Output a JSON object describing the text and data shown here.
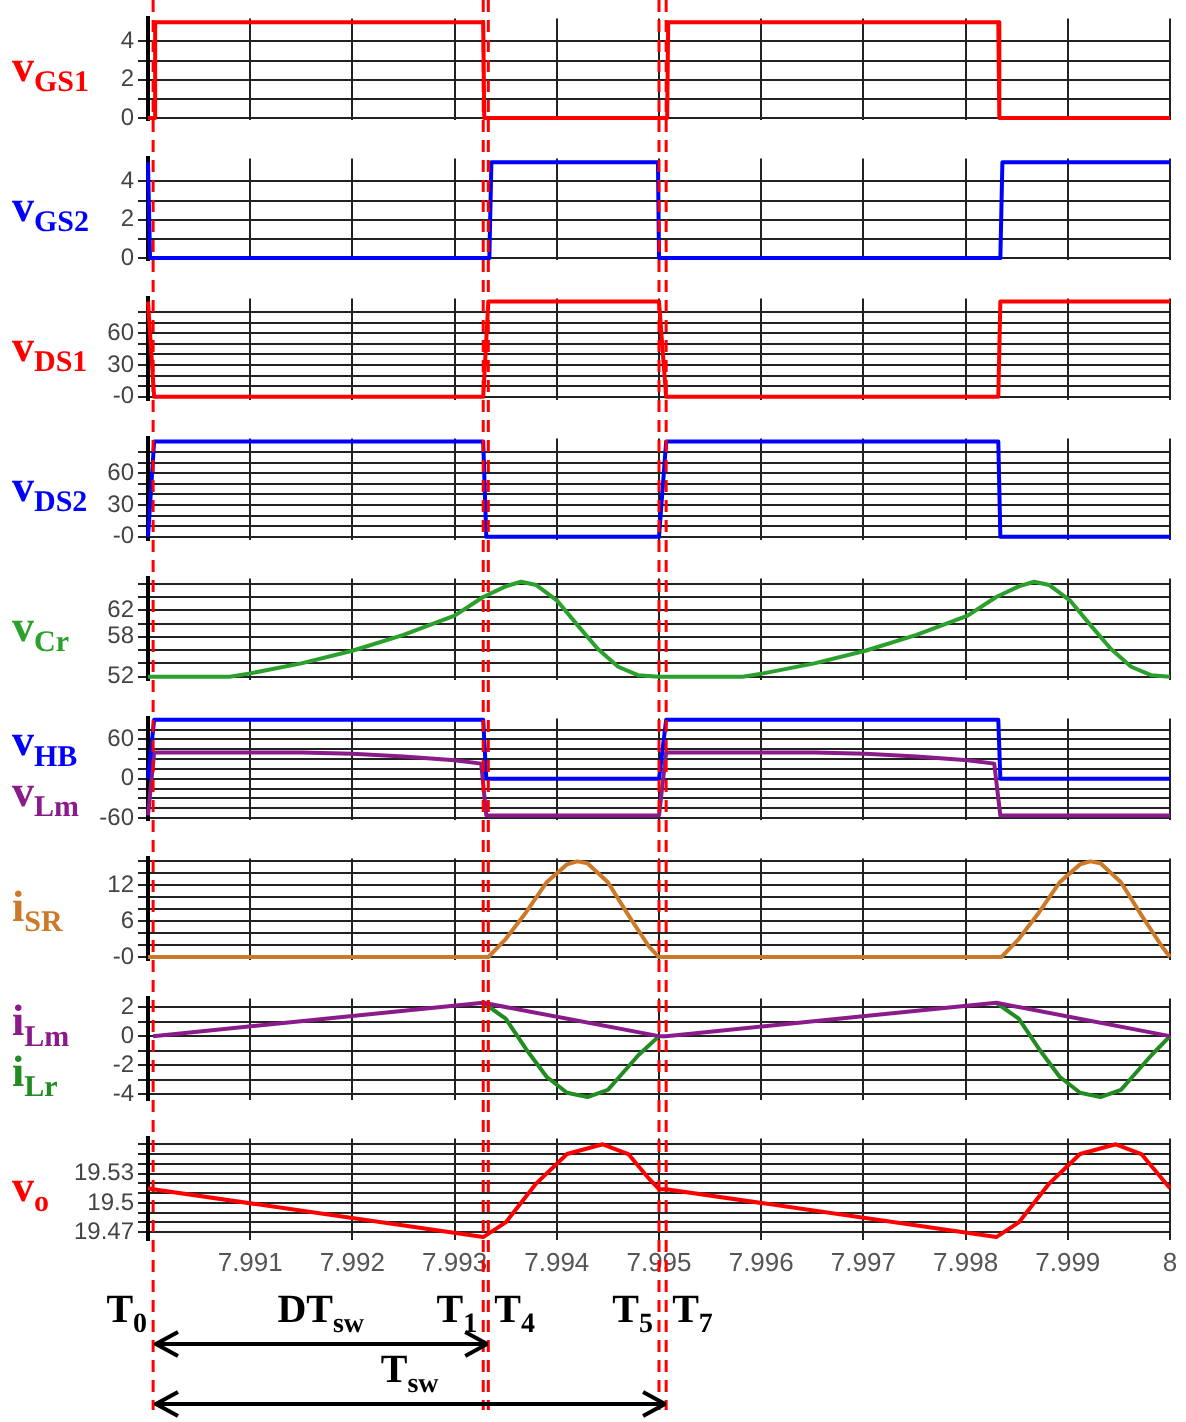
{
  "chart_data": [
    {
      "type": "line",
      "xlim": [
        7.99,
        8
      ],
      "xticks": [
        7.991,
        7.992,
        7.993,
        7.994,
        7.995,
        7.996,
        7.997,
        7.998,
        7.999,
        8
      ],
      "ylim": [
        -0.1,
        5.2
      ],
      "yticks": [
        0,
        {
          "value": 1,
          "label": null
        },
        2,
        {
          "value": 3,
          "label": null
        },
        4
      ],
      "grid": true,
      "legend": "left",
      "tick_labels": "y",
      "series": [
        {
          "name": "v$_{GS1}$",
          "color": "#ff0000",
          "x": [
            7.99,
            7.99006,
            7.99007,
            7.99328,
            7.99329,
            7.99508,
            7.99509,
            7.99832,
            7.99833,
            8
          ],
          "values": [
            0,
            0,
            5,
            5,
            0,
            0,
            5,
            5,
            0,
            0
          ]
        }
      ],
      "ref_lines": [
        {
          "axis": "x",
          "value": 7.99005,
          "color": "#ff0000",
          "line_style": "dashed"
        },
        {
          "axis": "x",
          "value": 7.99328,
          "color": "#ff0000",
          "line_style": "dashed"
        },
        {
          "axis": "x",
          "value": 7.99333,
          "color": "#ff0000",
          "line_style": "dashed"
        },
        {
          "axis": "x",
          "value": 7.995,
          "color": "#ff0000",
          "line_style": "dashed"
        },
        {
          "axis": "x",
          "value": 7.99507,
          "color": "#ff0000",
          "line_style": "dashed"
        }
      ]
    },
    {
      "type": "line",
      "xlim": [
        7.99,
        8
      ],
      "xticks": [
        7.991,
        7.992,
        7.993,
        7.994,
        7.995,
        7.996,
        7.997,
        7.998,
        7.999,
        8
      ],
      "ylim": [
        -0.1,
        5.2
      ],
      "yticks": [
        0,
        {
          "value": 1,
          "label": null
        },
        2,
        {
          "value": 3,
          "label": null
        },
        4
      ],
      "grid": true,
      "legend": "left",
      "tick_labels": "y",
      "series": [
        {
          "name": "v$_{GS2}$",
          "color": "#0000ff",
          "x": [
            7.99,
            7.99001,
            7.99002,
            7.99334,
            7.99336,
            7.99499,
            7.995,
            7.99834,
            7.99836,
            8
          ],
          "values": [
            5,
            5,
            0,
            0,
            5,
            5,
            0,
            0,
            5,
            5
          ]
        }
      ],
      "ref_lines": [
        {
          "axis": "x",
          "value": 7.99005,
          "color": "#ff0000",
          "line_style": "dashed"
        },
        {
          "axis": "x",
          "value": 7.99328,
          "color": "#ff0000",
          "line_style": "dashed"
        },
        {
          "axis": "x",
          "value": 7.99333,
          "color": "#ff0000",
          "line_style": "dashed"
        },
        {
          "axis": "x",
          "value": 7.995,
          "color": "#ff0000",
          "line_style": "dashed"
        },
        {
          "axis": "x",
          "value": 7.99507,
          "color": "#ff0000",
          "line_style": "dashed"
        }
      ]
    },
    {
      "type": "line",
      "xlim": [
        7.99,
        8
      ],
      "xticks": [
        7.991,
        7.992,
        7.993,
        7.994,
        7.995,
        7.996,
        7.997,
        7.998,
        7.999,
        8
      ],
      "ylim": [
        -3,
        93
      ],
      "yticks": [
        {
          "value": 0,
          "label": "-0"
        },
        {
          "value": 10,
          "label": null
        },
        {
          "value": 20,
          "label": null
        },
        30,
        {
          "value": 40,
          "label": null
        },
        {
          "value": 50,
          "label": null
        },
        60,
        {
          "value": 70,
          "label": null
        },
        {
          "value": 80,
          "label": null
        }
      ],
      "grid": true,
      "legend": "left",
      "tick_labels": "y",
      "series": [
        {
          "name": "v$_{DS1}$",
          "color": "#ff0000",
          "x": [
            7.99,
            7.99006,
            7.99328,
            7.99333,
            7.995,
            7.99507,
            7.99832,
            7.99834,
            8
          ],
          "values": [
            90,
            0,
            0,
            90,
            90,
            0,
            0,
            90,
            90
          ]
        }
      ],
      "ref_lines": [
        {
          "axis": "x",
          "value": 7.99005,
          "color": "#ff0000",
          "line_style": "dashed"
        },
        {
          "axis": "x",
          "value": 7.99328,
          "color": "#ff0000",
          "line_style": "dashed"
        },
        {
          "axis": "x",
          "value": 7.99333,
          "color": "#ff0000",
          "line_style": "dashed"
        },
        {
          "axis": "x",
          "value": 7.995,
          "color": "#ff0000",
          "line_style": "dashed"
        },
        {
          "axis": "x",
          "value": 7.99507,
          "color": "#ff0000",
          "line_style": "dashed"
        }
      ]
    },
    {
      "type": "line",
      "xlim": [
        7.99,
        8
      ],
      "xticks": [
        7.991,
        7.992,
        7.993,
        7.994,
        7.995,
        7.996,
        7.997,
        7.998,
        7.999,
        8
      ],
      "ylim": [
        -3,
        93
      ],
      "yticks": [
        {
          "value": 0,
          "label": "-0"
        },
        {
          "value": 10,
          "label": null
        },
        {
          "value": 20,
          "label": null
        },
        30,
        {
          "value": 40,
          "label": null
        },
        {
          "value": 50,
          "label": null
        },
        60,
        {
          "value": 70,
          "label": null
        },
        {
          "value": 80,
          "label": null
        }
      ],
      "grid": true,
      "legend": "left",
      "tick_labels": "y",
      "series": [
        {
          "name": "v$_{DS2}$",
          "color": "#0000ff",
          "x": [
            7.99,
            7.99006,
            7.99328,
            7.99331,
            7.995,
            7.99507,
            7.99832,
            7.99834,
            8
          ],
          "values": [
            0,
            90,
            90,
            0,
            0,
            90,
            90,
            0,
            0
          ]
        }
      ],
      "ref_lines": [
        {
          "axis": "x",
          "value": 7.99005,
          "color": "#ff0000",
          "line_style": "dashed"
        },
        {
          "axis": "x",
          "value": 7.99328,
          "color": "#ff0000",
          "line_style": "dashed"
        },
        {
          "axis": "x",
          "value": 7.99333,
          "color": "#ff0000",
          "line_style": "dashed"
        },
        {
          "axis": "x",
          "value": 7.995,
          "color": "#ff0000",
          "line_style": "dashed"
        },
        {
          "axis": "x",
          "value": 7.99507,
          "color": "#ff0000",
          "line_style": "dashed"
        }
      ]
    },
    {
      "type": "line",
      "xlim": [
        7.99,
        8
      ],
      "xticks": [
        7.991,
        7.992,
        7.993,
        7.994,
        7.995,
        7.996,
        7.997,
        7.998,
        7.999,
        8
      ],
      "ylim": [
        51.5,
        66.8
      ],
      "yticks": [
        52,
        {
          "value": 54,
          "label": null
        },
        {
          "value": 56,
          "label": null
        },
        58,
        {
          "value": 60,
          "label": null
        },
        62,
        {
          "value": 64,
          "label": null
        },
        {
          "value": 66,
          "label": null
        }
      ],
      "grid": true,
      "legend": "left",
      "tick_labels": "y",
      "series": [
        {
          "name": "v$_{Cr}$",
          "color": "#2ca02c",
          "x": [
            7.99,
            7.9908,
            7.991,
            7.9915,
            7.992,
            7.9925,
            7.993,
            7.99328,
            7.9935,
            7.99365,
            7.9938,
            7.994,
            7.9942,
            7.9944,
            7.9946,
            7.9948,
            7.995,
            7.99582,
            7.99602,
            7.99652,
            7.99702,
            7.99752,
            7.99802,
            7.9983,
            7.99852,
            7.99867,
            7.99882,
            7.99902,
            7.99922,
            7.99942,
            7.99962,
            7.99982,
            8
          ],
          "values": [
            52,
            52,
            52.5,
            54,
            55.9,
            58.3,
            61.2,
            64,
            65.6,
            66.3,
            65.8,
            63.5,
            59.8,
            56.2,
            53.5,
            52.2,
            52,
            52,
            52.5,
            54,
            55.9,
            58.3,
            61.2,
            64,
            65.6,
            66.3,
            65.8,
            63.5,
            59.8,
            56.2,
            53.5,
            52.2,
            52
          ]
        }
      ],
      "ref_lines": [
        {
          "axis": "x",
          "value": 7.99005,
          "color": "#ff0000",
          "line_style": "dashed"
        },
        {
          "axis": "x",
          "value": 7.99328,
          "color": "#ff0000",
          "line_style": "dashed"
        },
        {
          "axis": "x",
          "value": 7.99333,
          "color": "#ff0000",
          "line_style": "dashed"
        },
        {
          "axis": "x",
          "value": 7.995,
          "color": "#ff0000",
          "line_style": "dashed"
        },
        {
          "axis": "x",
          "value": 7.99507,
          "color": "#ff0000",
          "line_style": "dashed"
        }
      ]
    },
    {
      "type": "line",
      "xlim": [
        7.99,
        8
      ],
      "xticks": [
        7.991,
        7.992,
        7.993,
        7.994,
        7.995,
        7.996,
        7.997,
        7.998,
        7.999,
        8
      ],
      "ylim": [
        -63,
        92
      ],
      "yticks": [
        -60,
        {
          "value": -45,
          "label": null
        },
        {
          "value": -30,
          "label": null
        },
        {
          "value": -15,
          "label": null
        },
        0,
        {
          "value": 15,
          "label": null
        },
        {
          "value": 30,
          "label": null
        },
        {
          "value": 45,
          "label": null
        },
        60,
        {
          "value": 75,
          "label": null
        }
      ],
      "grid": true,
      "legend": "left",
      "tick_labels": "y",
      "series": [
        {
          "name": "v$_{HB}$",
          "color": "#0000ff",
          "x": [
            7.99,
            7.99006,
            7.99328,
            7.99331,
            7.995,
            7.99507,
            7.99832,
            7.99834,
            8
          ],
          "values": [
            0,
            90,
            90,
            0,
            0,
            90,
            90,
            0,
            0
          ]
        },
        {
          "name": "v$_{Lm}$",
          "color": "#8b1a8b",
          "x": [
            7.99,
            7.99006,
            7.9915,
            7.992,
            7.9925,
            7.993,
            7.99326,
            7.99331,
            7.995,
            7.99507,
            7.99652,
            7.99702,
            7.99752,
            7.99802,
            7.99828,
            7.99834,
            8
          ],
          "values": [
            -56,
            40,
            40,
            38,
            34,
            28,
            23,
            -56,
            -56,
            40,
            40,
            38,
            34,
            28,
            23,
            -56,
            -56
          ]
        }
      ],
      "ref_lines": [
        {
          "axis": "x",
          "value": 7.99005,
          "color": "#ff0000",
          "line_style": "dashed"
        },
        {
          "axis": "x",
          "value": 7.99328,
          "color": "#ff0000",
          "line_style": "dashed"
        },
        {
          "axis": "x",
          "value": 7.99333,
          "color": "#ff0000",
          "line_style": "dashed"
        },
        {
          "axis": "x",
          "value": 7.995,
          "color": "#ff0000",
          "line_style": "dashed"
        },
        {
          "axis": "x",
          "value": 7.99507,
          "color": "#ff0000",
          "line_style": "dashed"
        }
      ]
    },
    {
      "type": "line",
      "xlim": [
        7.99,
        8
      ],
      "xticks": [
        7.991,
        7.992,
        7.993,
        7.994,
        7.995,
        7.996,
        7.997,
        7.998,
        7.999,
        8
      ],
      "ylim": [
        -0.5,
        16.5
      ],
      "yticks": [
        {
          "value": 0,
          "label": "-0"
        },
        {
          "value": 2,
          "label": null
        },
        {
          "value": 4,
          "label": null
        },
        6,
        {
          "value": 8,
          "label": null
        },
        {
          "value": 10,
          "label": null
        },
        12,
        {
          "value": 14,
          "label": null
        },
        {
          "value": 16,
          "label": null
        }
      ],
      "grid": true,
      "legend": "left",
      "tick_labels": "y",
      "series": [
        {
          "name": "i$_{SR}$",
          "color": "#cc7a29",
          "x": [
            7.99,
            7.99333,
            7.9935,
            7.9937,
            7.9939,
            7.9941,
            7.9942,
            7.9943,
            7.9945,
            7.9947,
            7.9949,
            7.995,
            7.99835,
            7.99852,
            7.99872,
            7.99892,
            7.99912,
            7.99922,
            7.99932,
            7.99952,
            7.99972,
            7.99992,
            8
          ],
          "values": [
            0,
            0,
            3,
            7.5,
            12.5,
            15.5,
            16,
            15.7,
            12.5,
            7,
            1.8,
            0,
            0,
            3,
            7.5,
            12.5,
            15.5,
            16,
            15.7,
            12.5,
            7,
            1.8,
            0
          ]
        }
      ],
      "ref_lines": [
        {
          "axis": "x",
          "value": 7.99005,
          "color": "#ff0000",
          "line_style": "dashed"
        },
        {
          "axis": "x",
          "value": 7.99328,
          "color": "#ff0000",
          "line_style": "dashed"
        },
        {
          "axis": "x",
          "value": 7.99333,
          "color": "#ff0000",
          "line_style": "dashed"
        },
        {
          "axis": "x",
          "value": 7.995,
          "color": "#ff0000",
          "line_style": "dashed"
        },
        {
          "axis": "x",
          "value": 7.99507,
          "color": "#ff0000",
          "line_style": "dashed"
        }
      ]
    },
    {
      "type": "line",
      "xlim": [
        7.99,
        8
      ],
      "xticks": [
        7.991,
        7.992,
        7.993,
        7.994,
        7.995,
        7.996,
        7.997,
        7.998,
        7.999,
        8
      ],
      "ylim": [
        -4.4,
        2.6
      ],
      "yticks": [
        -4,
        {
          "value": -3,
          "label": null
        },
        -2,
        {
          "value": -1,
          "label": null
        },
        0,
        {
          "value": 1,
          "label": null
        },
        2
      ],
      "grid": true,
      "legend": "left",
      "tick_labels": "y",
      "series": [
        {
          "name": "i$_{Lm}$",
          "color": "#8b1a8b",
          "x": [
            7.99005,
            7.99328,
            7.995,
            7.99507,
            7.9983,
            8
          ],
          "values": [
            0,
            2.3,
            0,
            0,
            2.3,
            0
          ]
        },
        {
          "name": "i$_{Lr}$",
          "color": "#228b22",
          "x": [
            7.99328,
            7.9935,
            7.9937,
            7.9939,
            7.9941,
            7.9943,
            7.9945,
            7.9946,
            7.9948,
            7.995,
            7.9966,
            7.9983,
            7.99852,
            7.99872,
            7.99892,
            7.99912,
            7.99932,
            7.99952,
            7.99962,
            7.99982,
            8
          ],
          "values": [
            2.3,
            1.2,
            -0.9,
            -2.8,
            -3.9,
            -4.2,
            -3.7,
            -2.9,
            -1.3,
            0,
            null,
            2.3,
            1.2,
            -0.9,
            -2.8,
            -3.9,
            -4.2,
            -3.7,
            -2.9,
            -1.3,
            0
          ]
        }
      ],
      "ref_lines": [
        {
          "axis": "x",
          "value": 7.99005,
          "color": "#ff0000",
          "line_style": "dashed"
        },
        {
          "axis": "x",
          "value": 7.99328,
          "color": "#ff0000",
          "line_style": "dashed"
        },
        {
          "axis": "x",
          "value": 7.99333,
          "color": "#ff0000",
          "line_style": "dashed"
        },
        {
          "axis": "x",
          "value": 7.995,
          "color": "#ff0000",
          "line_style": "dashed"
        },
        {
          "axis": "x",
          "value": 7.99507,
          "color": "#ff0000",
          "line_style": "dashed"
        }
      ]
    },
    {
      "type": "line",
      "xlim": [
        7.99,
        8
      ],
      "xticks": [
        7.991,
        7.992,
        7.993,
        7.994,
        7.995,
        7.996,
        7.997,
        7.998,
        7.999,
        8
      ],
      "ylim": [
        19.462,
        19.566
      ],
      "yticks": [
        19.47,
        {
          "value": 19.48,
          "label": null
        },
        {
          "value": 19.49,
          "label": null
        },
        19.5,
        {
          "value": 19.51,
          "label": null
        },
        {
          "value": 19.52,
          "label": null
        },
        19.53,
        {
          "value": 19.54,
          "label": null
        },
        {
          "value": 19.55,
          "label": null
        },
        {
          "value": 19.56,
          "label": null
        }
      ],
      "grid": true,
      "legend": "left",
      "series": [
        {
          "name": "v$_{o}$",
          "color": "#ff0000",
          "x": [
            7.99,
            7.99005,
            7.99328,
            7.9935,
            7.9938,
            7.9941,
            7.99445,
            7.9947,
            7.9949,
            7.995,
            7.99507,
            7.9983,
            7.99852,
            7.99882,
            7.99912,
            7.99947,
            7.99972,
            7.99992,
            8
          ],
          "values": [
            19.515,
            19.514,
            19.465,
            19.48,
            19.52,
            19.55,
            19.56,
            19.55,
            19.525,
            19.514,
            19.514,
            19.465,
            19.48,
            19.52,
            19.55,
            19.56,
            19.55,
            19.525,
            19.515
          ]
        }
      ],
      "ref_lines": [
        {
          "axis": "x",
          "value": 7.99005,
          "label": "T$_{0}$",
          "color": "#ff0000",
          "line_style": "dashed"
        },
        {
          "axis": "x",
          "value": 7.99328,
          "label": "T$_{1}$",
          "color": "#ff0000",
          "line_style": "dashed"
        },
        {
          "axis": "x",
          "value": 7.99333,
          "label": "T$_{4}$",
          "color": "#ff0000",
          "line_style": "dashed"
        },
        {
          "axis": "x",
          "value": 7.995,
          "label": "T$_{5}$",
          "color": "#ff0000",
          "line_style": "dashed"
        },
        {
          "axis": "x",
          "value": 7.99507,
          "label": "T$_{7}$",
          "color": "#ff0000",
          "line_style": "dashed"
        }
      ],
      "annotations": [
        "DT$_{sw}$",
        "T$_{sw}$"
      ]
    }
  ]
}
